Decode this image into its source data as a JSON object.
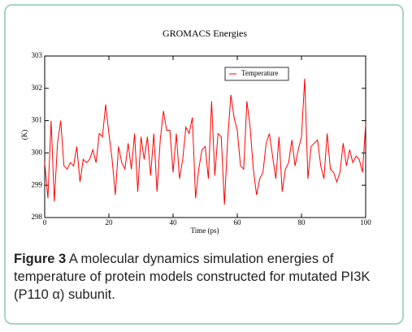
{
  "chart_data": {
    "type": "line",
    "title": "GROMACS Energies",
    "x_label": "Time (ps)",
    "y_label": "(K)",
    "x": [
      0,
      1,
      2,
      3,
      4,
      5,
      6,
      7,
      8,
      9,
      10,
      11,
      12,
      13,
      14,
      15,
      16,
      17,
      18,
      19,
      20,
      21,
      22,
      23,
      24,
      25,
      26,
      27,
      28,
      29,
      30,
      31,
      32,
      33,
      34,
      35,
      36,
      37,
      38,
      39,
      40,
      41,
      42,
      43,
      44,
      45,
      46,
      47,
      48,
      49,
      50,
      51,
      52,
      53,
      54,
      55,
      56,
      57,
      58,
      59,
      60,
      61,
      62,
      63,
      64,
      65,
      66,
      67,
      68,
      69,
      70,
      71,
      72,
      73,
      74,
      75,
      76,
      77,
      78,
      79,
      80,
      81,
      82,
      83,
      84,
      85,
      86,
      87,
      88,
      89,
      90,
      91,
      92,
      93,
      94,
      95,
      96,
      97,
      98,
      99,
      100
    ],
    "series": [
      {
        "name": "Temperature",
        "color": "#ff0000",
        "values": [
          299.7,
          298.6,
          301,
          298.5,
          300.3,
          301,
          299.6,
          299.5,
          299.7,
          299.6,
          300.2,
          299.1,
          299.8,
          299.7,
          299.8,
          300.1,
          299.7,
          300.6,
          300.5,
          301.5,
          300.6,
          299.8,
          298.7,
          300.2,
          299.7,
          299.5,
          300.3,
          299.5,
          300.6,
          298.8,
          300.5,
          299.8,
          300.5,
          299.3,
          300.6,
          298.8,
          300.4,
          301.3,
          300.7,
          300.7,
          299.4,
          300.6,
          299.2,
          299.8,
          300.8,
          300.6,
          301.1,
          298.6,
          299.5,
          300.1,
          300.2,
          299.2,
          301.6,
          299.3,
          300.6,
          300.5,
          298.4,
          300.4,
          301.8,
          301.1,
          300.7,
          299.6,
          299.5,
          301.6,
          300.8,
          299.5,
          298.7,
          299.2,
          299.4,
          300.3,
          300.6,
          299.9,
          299.2,
          300.5,
          298.8,
          299.5,
          299.7,
          300.4,
          299.6,
          300.1,
          300.5,
          302.3,
          299.2,
          300.2,
          300.3,
          300.4,
          299.6,
          299.2,
          300.6,
          299.5,
          299.4,
          299.1,
          299.4,
          300.3,
          299.6,
          300.1,
          299.7,
          299.9,
          299.8,
          299.4,
          300.9
        ]
      }
    ],
    "xlim": [
      0,
      100
    ],
    "xticks": [
      0,
      20,
      40,
      60,
      80,
      100
    ],
    "ylim": [
      298,
      303
    ],
    "yticks": [
      298,
      299,
      300,
      301,
      302,
      303
    ],
    "legend": "upper-center"
  },
  "caption": {
    "label": "Figure 3",
    "text": "A molecular dynamics simulation energies of temperature of protein models constructed for mutated PI3K (P110 α) subunit."
  }
}
